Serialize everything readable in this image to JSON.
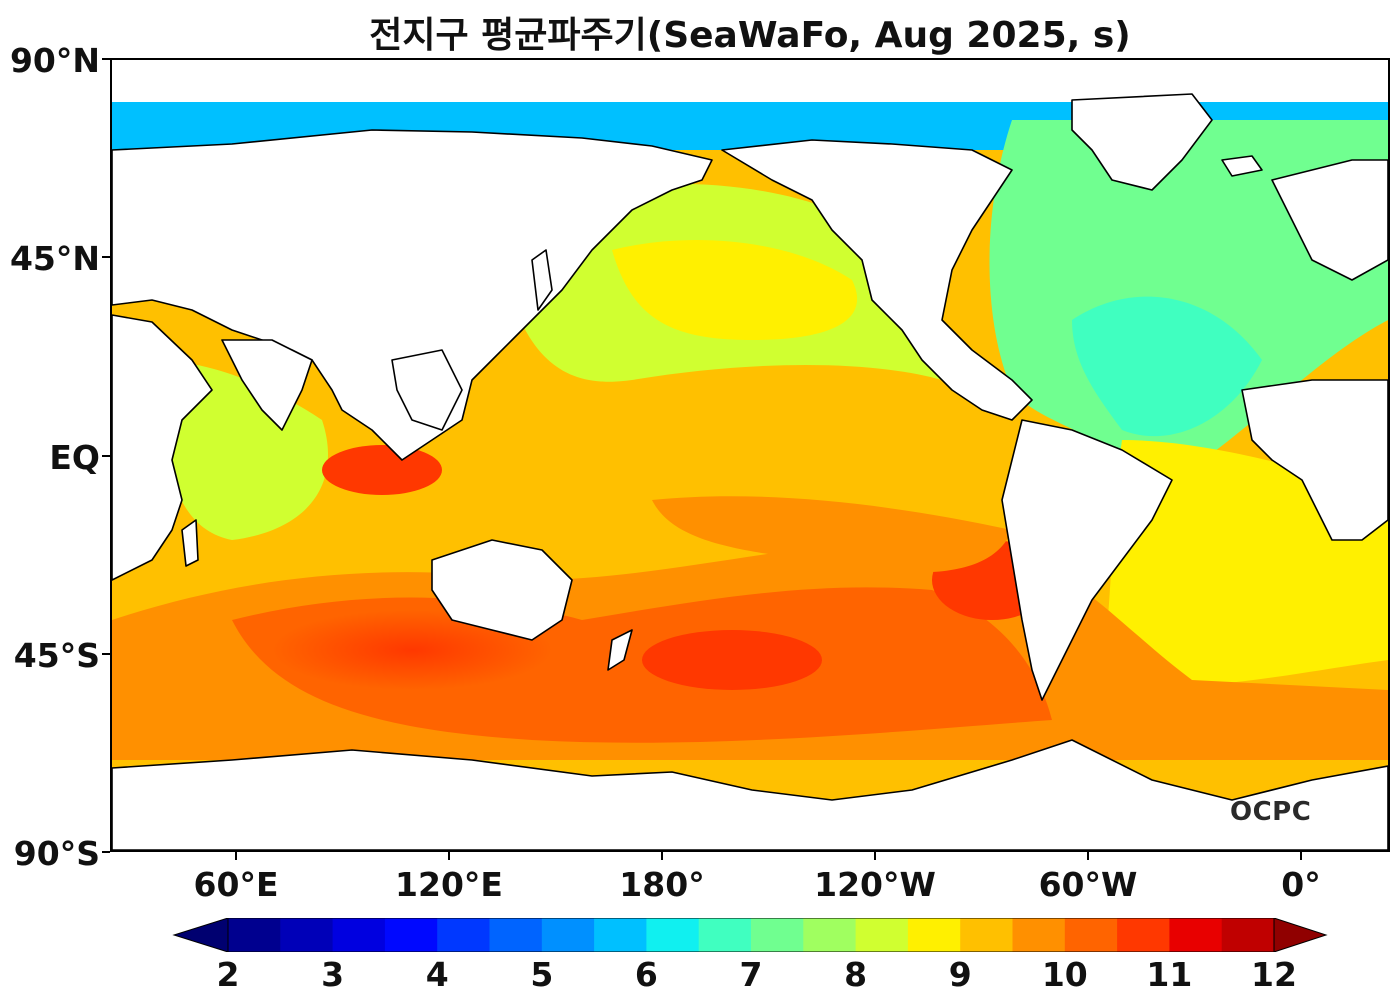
{
  "title": "전지구 평균파주기(SeaWaFo, Aug 2025, s)",
  "logo": "OCPC",
  "lat_labels": [
    "90°N",
    "45°N",
    "EQ",
    "45°S",
    "90°S"
  ],
  "lon_labels": [
    "60°E",
    "120°E",
    "180°",
    "120°W",
    "60°W",
    "0°"
  ],
  "colorbar": {
    "ticks": [
      "2",
      "3",
      "4",
      "5",
      "6",
      "7",
      "8",
      "9",
      "10",
      "11",
      "12"
    ],
    "min": 2,
    "max": 12,
    "step": 0.5,
    "extend": "both",
    "colormap": "jet",
    "colors": [
      "#00008f",
      "#0000b8",
      "#0000e0",
      "#0008ff",
      "#0038ff",
      "#0064ff",
      "#0090ff",
      "#00c0ff",
      "#10f0f0",
      "#40ffc0",
      "#70ff90",
      "#a0ff60",
      "#d0ff30",
      "#fff000",
      "#ffc000",
      "#ff9000",
      "#ff6400",
      "#ff3800",
      "#e80000",
      "#c00000"
    ],
    "under_color": "#000070",
    "over_color": "#900000"
  }
}
